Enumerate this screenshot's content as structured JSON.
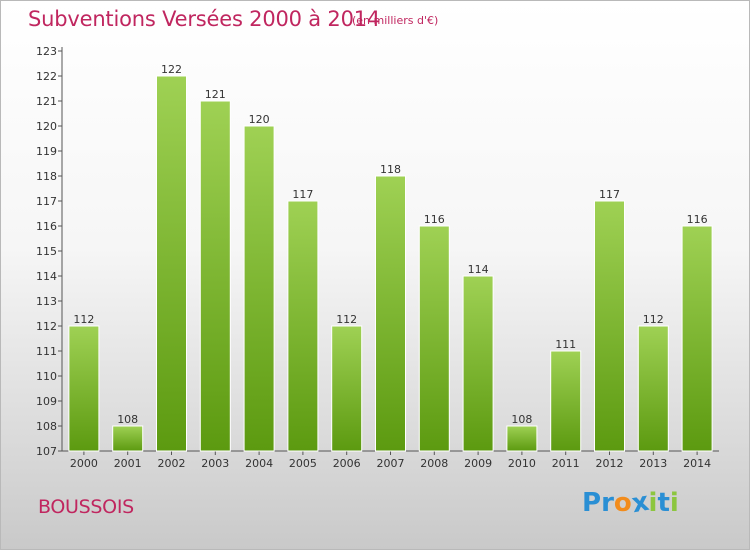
{
  "header": {
    "title": "Subventions Versées 2000 à 2014",
    "subtitle": "(en milliers d'€)"
  },
  "footer": {
    "commune": "BOUSSOIS",
    "logo_text": "Proxiti",
    "logo_letters": [
      {
        "char": "P",
        "color": "#2a8fd4"
      },
      {
        "char": "r",
        "color": "#2a8fd4"
      },
      {
        "char": "o",
        "color": "#f28c1c"
      },
      {
        "char": "x",
        "color": "#2a8fd4"
      },
      {
        "char": "i",
        "color": "#8cc63f"
      },
      {
        "char": "t",
        "color": "#2a8fd4"
      },
      {
        "char": "i",
        "color": "#8cc63f"
      }
    ]
  },
  "colors": {
    "accent": "#c0265f",
    "bar_top": "#9fd154",
    "bar_bottom": "#5c9a10"
  },
  "chart_data": {
    "type": "bar",
    "title": "Subventions Versées 2000 à 2014",
    "subtitle": "(en milliers d'€)",
    "categories": [
      "2000",
      "2001",
      "2002",
      "2003",
      "2004",
      "2005",
      "2006",
      "2007",
      "2008",
      "2009",
      "2010",
      "2011",
      "2012",
      "2013",
      "2014"
    ],
    "values": [
      112,
      108,
      122,
      121,
      120,
      117,
      112,
      118,
      116,
      114,
      108,
      111,
      117,
      112,
      116
    ],
    "ylim": [
      107,
      123
    ],
    "yticks": [
      "107",
      "108",
      "109",
      "110",
      "111",
      "112",
      "113",
      "114",
      "115",
      "116",
      "117",
      "118",
      "119",
      "120",
      "121",
      "122",
      "123"
    ],
    "grid": false,
    "legend": "none"
  }
}
